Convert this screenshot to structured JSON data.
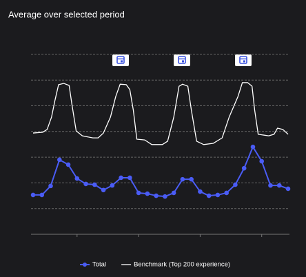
{
  "chart_data": {
    "type": "line",
    "title": "Average over selected period",
    "x": [
      0,
      1,
      2,
      3,
      4,
      5,
      6,
      7,
      8,
      9,
      10,
      11,
      12,
      13,
      14,
      15,
      16,
      17,
      18,
      19,
      20,
      21,
      22,
      23,
      24,
      25,
      26,
      27,
      28,
      29
    ],
    "series": [
      {
        "name": "Total",
        "color": "#4a5cf5",
        "markers": true,
        "values": [
          1.53,
          1.53,
          1.88,
          2.9,
          2.71,
          2.17,
          1.96,
          1.93,
          1.72,
          1.9,
          2.2,
          2.2,
          1.61,
          1.58,
          1.5,
          1.47,
          1.61,
          2.14,
          2.14,
          1.66,
          1.5,
          1.53,
          1.61,
          1.93,
          2.57,
          3.4,
          2.84,
          1.9,
          1.9,
          1.77
        ]
      },
      {
        "name": "Benchmark (Top 200 experience)",
        "color": "#ffffff",
        "markers": false,
        "x": [
          0,
          1.1,
          1.6,
          2.1,
          2.5,
          2.9,
          3.5,
          4.1,
          4.4,
          4.9,
          5.6,
          6.8,
          7.4,
          8.0,
          8.8,
          9.4,
          9.9,
          10.6,
          11.0,
          11.4,
          11.8,
          12.7,
          13.5,
          14.7,
          15.3,
          16.0,
          16.6,
          17.0,
          17.6,
          18.0,
          18.6,
          19.4,
          20.5,
          21.5,
          22.3,
          23.3,
          23.8,
          24.4,
          24.9,
          25.2,
          25.6,
          26.8,
          27.4,
          27.8,
          28.4,
          29.0
        ],
        "values": [
          3.94,
          3.97,
          4.08,
          4.56,
          5.23,
          5.82,
          5.87,
          5.79,
          5.09,
          4.02,
          3.83,
          3.75,
          3.75,
          3.94,
          4.56,
          5.36,
          5.84,
          5.82,
          5.63,
          4.83,
          3.7,
          3.67,
          3.49,
          3.49,
          3.62,
          4.56,
          5.76,
          5.84,
          5.76,
          4.83,
          3.62,
          3.49,
          3.54,
          3.75,
          4.56,
          5.36,
          5.9,
          5.9,
          5.76,
          4.83,
          3.89,
          3.83,
          3.89,
          4.13,
          4.08,
          3.89
        ]
      }
    ],
    "xlim": [
      0,
      29
    ],
    "xticks": [
      5,
      12,
      19,
      26
    ],
    "ylim": [
      0,
      7
    ],
    "yticks": [
      0,
      1,
      2,
      3,
      4,
      5,
      6,
      7
    ],
    "grid": true,
    "legend": "bottom"
  }
}
